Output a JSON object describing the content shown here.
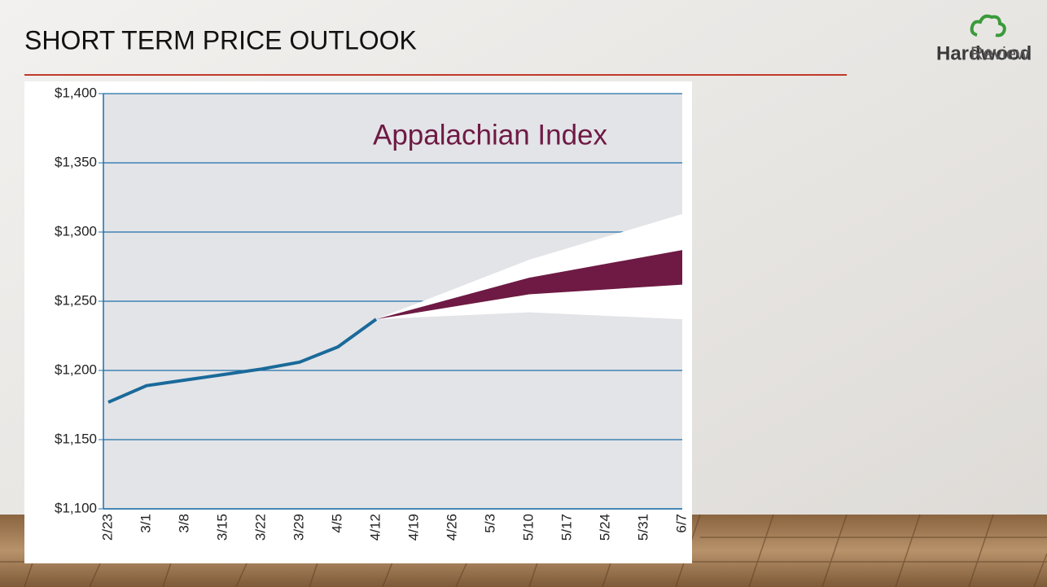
{
  "slide_title": "SHORT TERM PRICE OUTLOOK",
  "logo": {
    "bold": "Hardwood",
    "light": "Review"
  },
  "chart_data": {
    "type": "line",
    "annotation": "Appalachian Index",
    "categories": [
      "2/23",
      "3/1",
      "3/8",
      "3/15",
      "3/22",
      "3/29",
      "4/5",
      "4/12",
      "4/19",
      "4/26",
      "5/3",
      "5/10",
      "5/17",
      "5/24",
      "5/31",
      "6/7"
    ],
    "series": [
      {
        "color": "#1a6a9a",
        "values": [
          1177,
          1189,
          1193,
          1197,
          1201,
          1206,
          1217,
          1237,
          null,
          null,
          null,
          null,
          null,
          null,
          null,
          null
        ]
      }
    ],
    "bands": [
      {
        "color": "#ffffff",
        "x": [
          "4/12",
          "5/10",
          "6/7"
        ],
        "high": [
          1237,
          1280,
          1313
        ],
        "low": [
          1237,
          1242,
          1237
        ]
      },
      {
        "color": "#6e1a44",
        "x": [
          "4/12",
          "5/10",
          "6/7"
        ],
        "high": [
          1237,
          1267,
          1287
        ],
        "low": [
          1237,
          1255,
          1262
        ]
      }
    ],
    "ylim": [
      1100,
      1400
    ],
    "yticks": [
      {
        "value": 1100,
        "label": "$1,100"
      },
      {
        "value": 1150,
        "label": "$1,150"
      },
      {
        "value": 1200,
        "label": "$1,200"
      },
      {
        "value": 1250,
        "label": "$1,250"
      },
      {
        "value": 1300,
        "label": "$1,300"
      },
      {
        "value": 1350,
        "label": "$1,350"
      },
      {
        "value": 1400,
        "label": "$1,400"
      }
    ],
    "grid": true
  }
}
